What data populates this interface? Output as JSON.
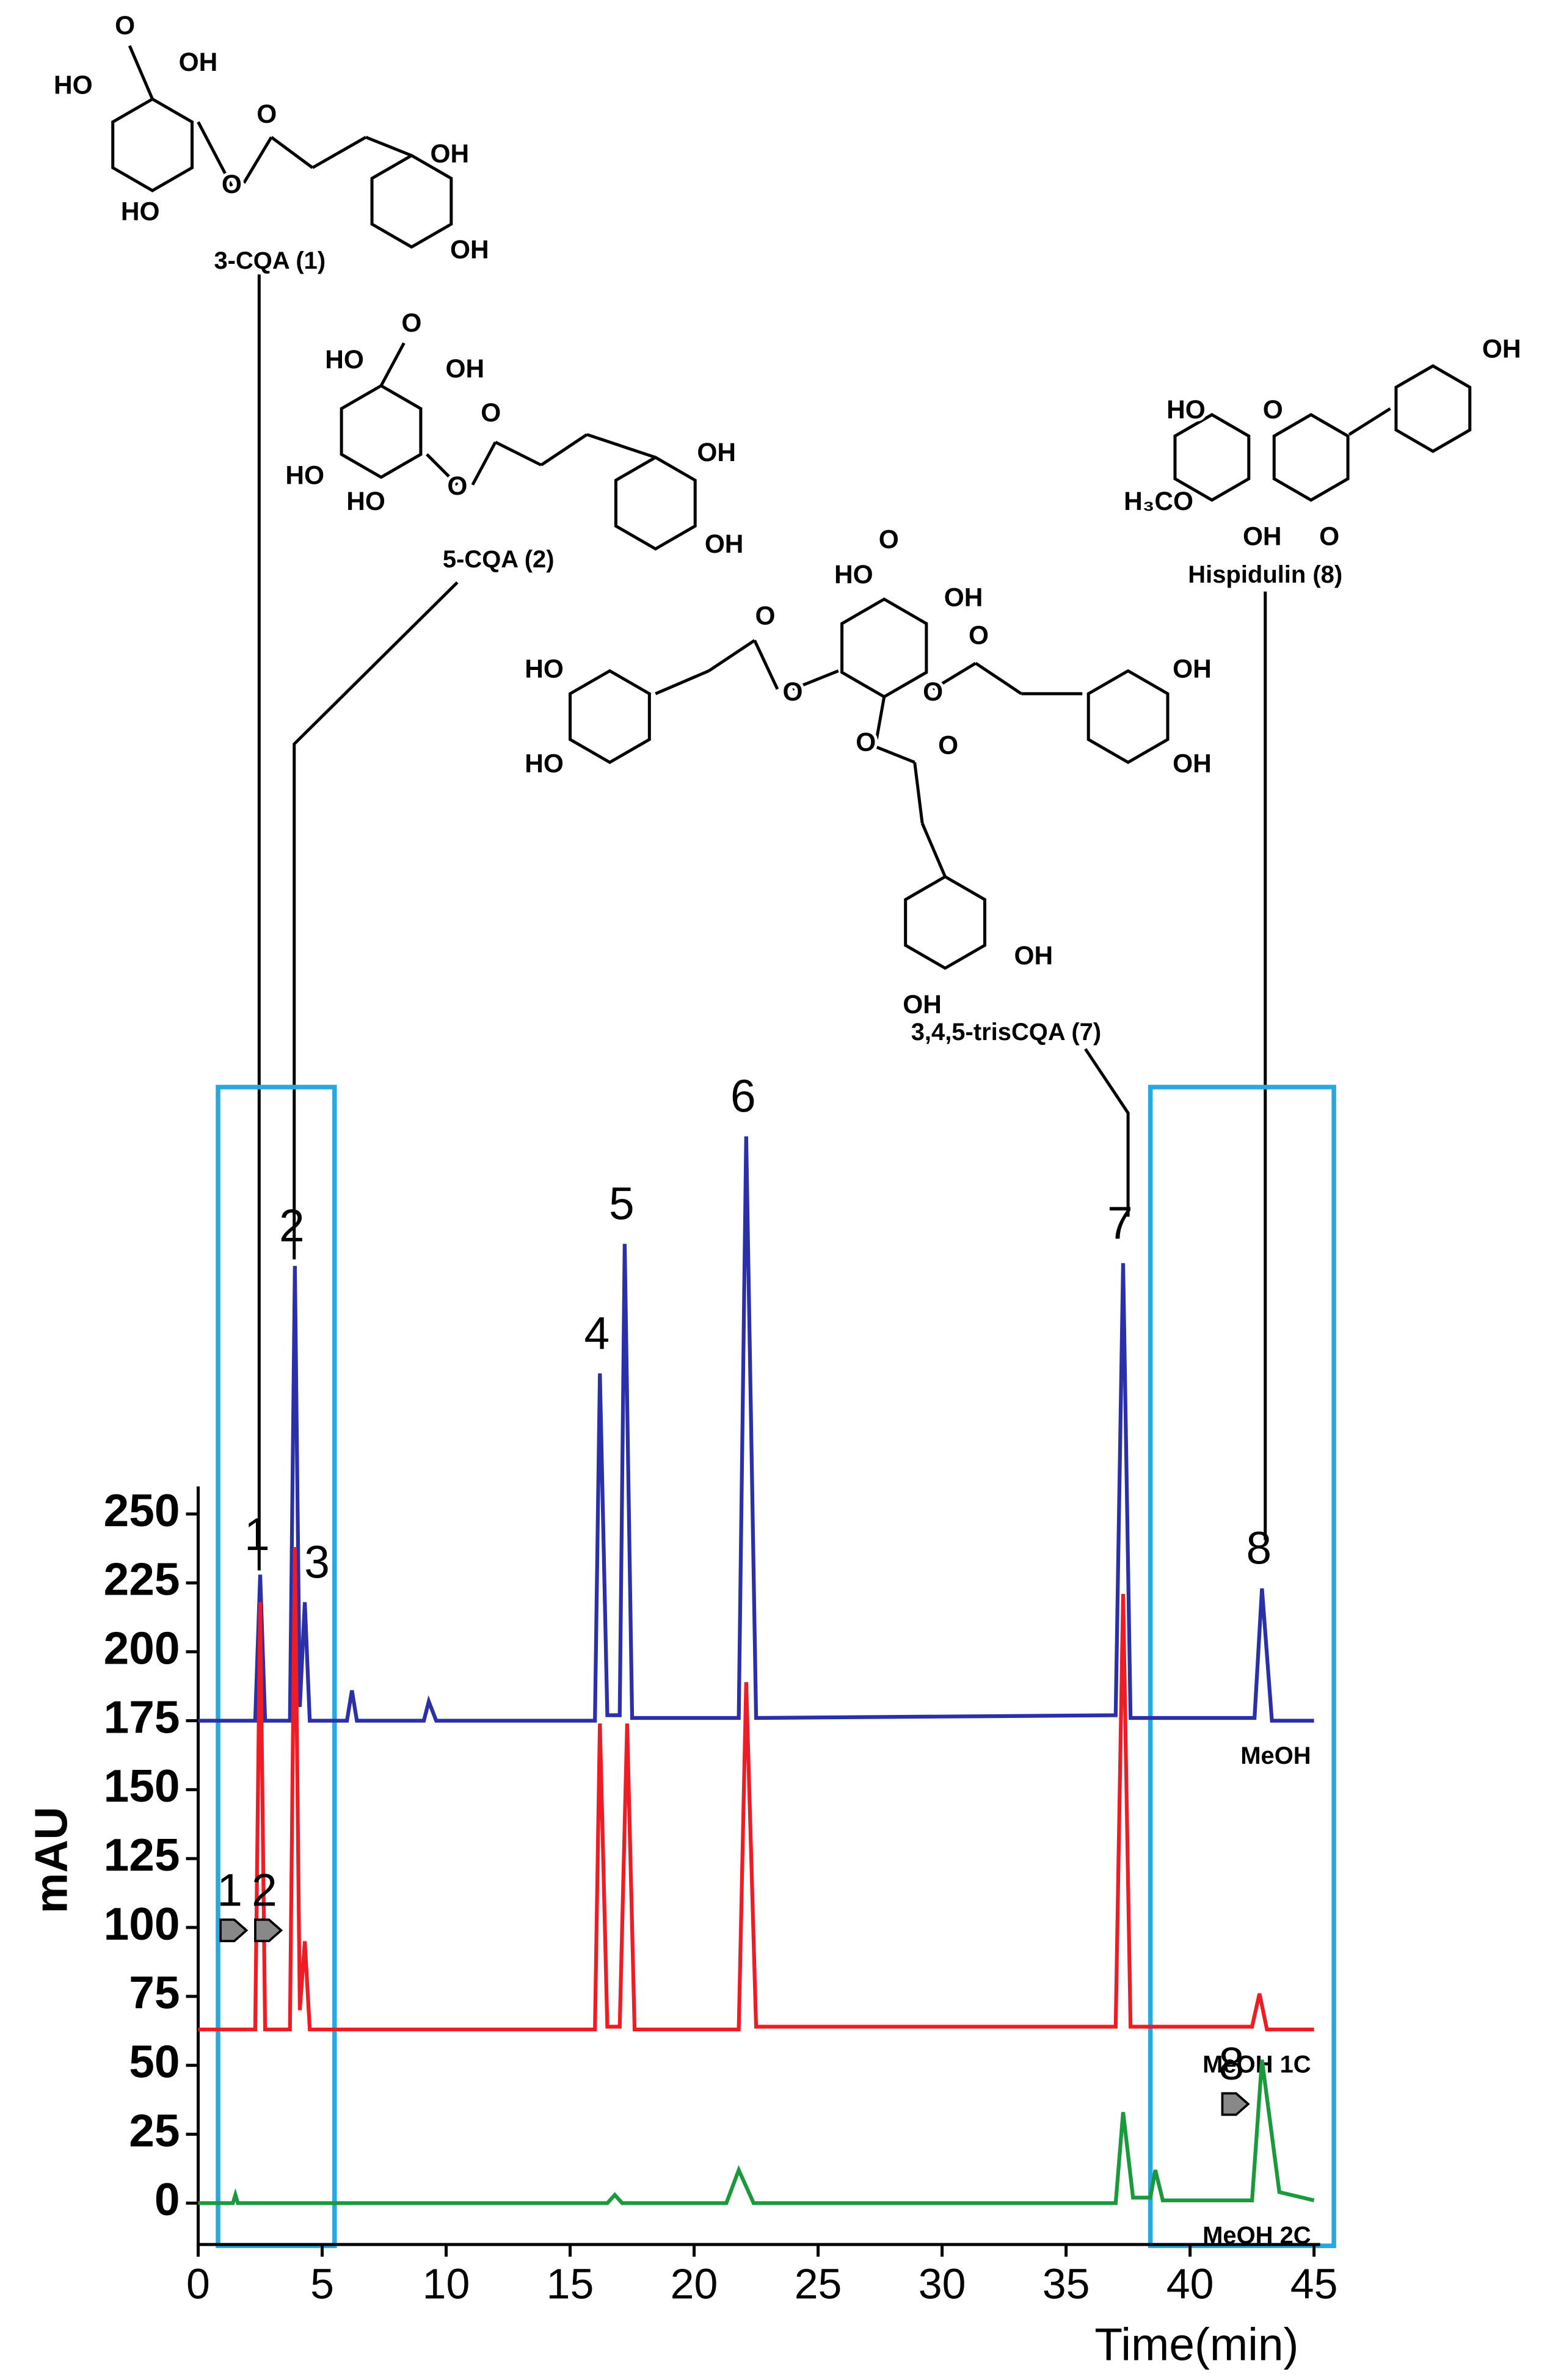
{
  "chart_data": {
    "type": "line",
    "y_label": "mAU",
    "x_label": "Time(min)",
    "xlim": [
      0,
      45
    ],
    "xticks": [
      0,
      5,
      10,
      15,
      20,
      25,
      30,
      35,
      40,
      45
    ],
    "ylim": [
      -15,
      260
    ],
    "yticks": [
      0,
      25,
      50,
      75,
      100,
      125,
      150,
      175,
      200,
      225,
      250
    ],
    "highlight_ranges": [
      [
        0.8,
        5.5
      ],
      [
        38.4,
        45.8
      ]
    ],
    "series": [
      {
        "name": "MeOH",
        "color": "#2b2fa8",
        "x": [
          0,
          2.3,
          2.5,
          2.7,
          3.7,
          3.9,
          4.1,
          4.3,
          4.5,
          6.0,
          6.2,
          6.4,
          9.1,
          9.3,
          9.6,
          16.0,
          16.2,
          16.5,
          17.0,
          17.2,
          17.5,
          21.8,
          22.1,
          22.5,
          37.0,
          37.3,
          37.6,
          42.6,
          42.9,
          43.3,
          45
        ],
        "values": [
          175,
          175,
          228,
          175,
          175,
          340,
          180,
          218,
          175,
          175,
          186,
          175,
          175,
          182,
          175,
          175,
          301,
          177,
          177,
          348,
          176,
          176,
          387,
          176,
          177,
          341,
          176,
          176,
          223,
          175,
          175
        ]
      },
      {
        "name": "MeOH 1C",
        "color": "#ee1c25",
        "x": [
          0,
          2.3,
          2.5,
          2.7,
          3.7,
          3.9,
          4.1,
          4.3,
          4.5,
          16.0,
          16.2,
          16.5,
          17.0,
          17.3,
          17.6,
          21.8,
          22.1,
          22.5,
          37.0,
          37.3,
          37.6,
          42.5,
          42.8,
          43.1,
          45
        ],
        "values": [
          63,
          63,
          218,
          63,
          63,
          238,
          70,
          95,
          63,
          63,
          174,
          64,
          64,
          174,
          63,
          63,
          189,
          64,
          64,
          221,
          64,
          64,
          76,
          63,
          63
        ]
      },
      {
        "name": "MeOH 2C",
        "color": "#1a9a3c",
        "x": [
          0,
          1.4,
          1.5,
          1.6,
          16.5,
          16.8,
          17.1,
          21.3,
          21.8,
          22.4,
          37.0,
          37.3,
          37.7,
          38.4,
          38.6,
          38.9,
          42.5,
          42.9,
          43.6,
          45
        ],
        "values": [
          0,
          0,
          3,
          0,
          0,
          3,
          0,
          0,
          12,
          0,
          0,
          33,
          2,
          2,
          12,
          1,
          1,
          52,
          4,
          1
        ]
      }
    ],
    "annotations": [
      {
        "text": "1",
        "x": 2.5,
        "series": "MeOH"
      },
      {
        "text": "2",
        "x": 3.9,
        "series": "MeOH"
      },
      {
        "text": "3",
        "x": 4.3,
        "series": "MeOH"
      },
      {
        "text": "4",
        "x": 16.2,
        "series": "MeOH"
      },
      {
        "text": "5",
        "x": 17.2,
        "series": "MeOH"
      },
      {
        "text": "6",
        "x": 22.1,
        "series": "MeOH"
      },
      {
        "text": "7",
        "x": 37.3,
        "series": "MeOH"
      },
      {
        "text": "8",
        "x": 42.9,
        "series": "MeOH"
      },
      {
        "text": "1",
        "x": 2.5,
        "series": "MeOH 1C",
        "arrow": true
      },
      {
        "text": "2",
        "x": 3.9,
        "series": "MeOH 1C",
        "arrow": true
      },
      {
        "text": "8",
        "x": 42.9,
        "series": "MeOH 2C",
        "arrow": true
      }
    ]
  },
  "structures": [
    {
      "name": "3-CQA (1)",
      "atoms": [
        "O",
        "HO",
        "OH",
        "HO",
        "O",
        "O",
        "OH",
        "OH"
      ]
    },
    {
      "name": "5-CQA (2)",
      "atoms": [
        "O",
        "HO",
        "OH",
        "HO",
        "HO",
        "O",
        "O",
        "OH",
        "OH"
      ]
    },
    {
      "name": "3,4,5-trisCQA (7)",
      "atoms": [
        "O",
        "HO",
        "OH",
        "O",
        "O",
        "O",
        "O",
        "HO",
        "HO",
        "OH",
        "OH",
        "O",
        "O",
        "OH",
        "OH"
      ]
    },
    {
      "name": "Hispidulin (8)",
      "atoms": [
        "O",
        "HO",
        "OH",
        "H₃CO",
        "OH",
        "O"
      ]
    }
  ]
}
